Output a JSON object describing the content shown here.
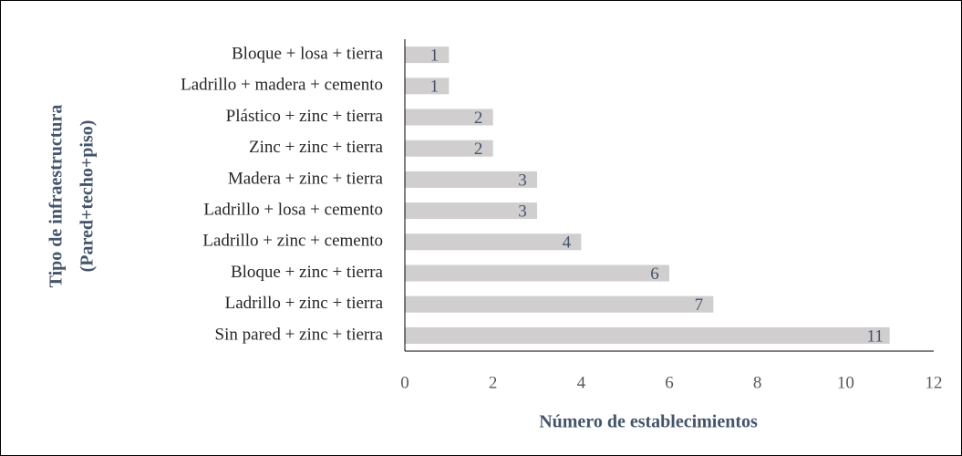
{
  "chart_data": {
    "type": "barh",
    "xlabel": "Número de establecimientos",
    "ylabel": [
      "Tipo de infraestructura",
      "(Pared+techo+piso)"
    ],
    "categories": [
      "Bloque + losa + tierra",
      "Ladrillo + madera + cemento",
      "Plástico + zinc + tierra",
      "Zinc + zinc + tierra",
      "Madera + zinc + tierra",
      "Ladrillo + losa + cemento",
      "Ladrillo + zinc + cemento",
      "Bloque + zinc + tierra",
      "Ladrillo + zinc + tierra",
      "Sin pared + zinc + tierra"
    ],
    "values": [
      1,
      1,
      2,
      2,
      3,
      3,
      4,
      6,
      7,
      11
    ],
    "color": "#d0cece",
    "xlim": [
      0,
      12
    ],
    "xticks": [
      0,
      2,
      4,
      6,
      8,
      10,
      12
    ],
    "grid": false
  }
}
